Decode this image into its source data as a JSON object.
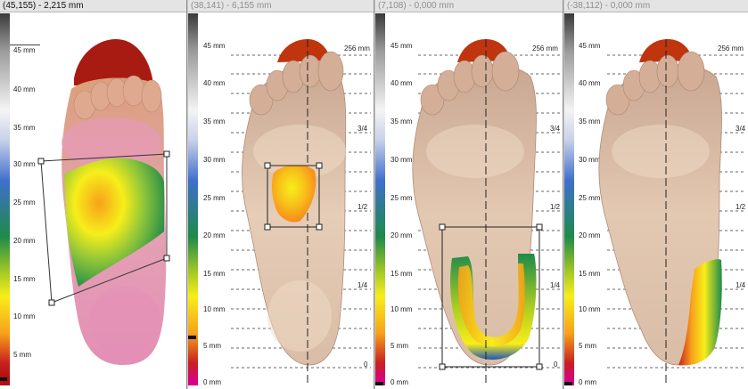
{
  "panels": [
    {
      "title": "(45,155) - 2,215 mm",
      "title_state": "active",
      "scale_labels": [
        "45 mm",
        "40 mm",
        "35 mm",
        "30 mm",
        "25 mm",
        "20 mm",
        "15 mm",
        "10 mm",
        "5 mm"
      ],
      "selection": "quadrilateral",
      "marker_level_mm": 2.2
    },
    {
      "title": "(38,141) - 6,155 mm",
      "title_state": "inactive",
      "scale_labels": [
        "45 mm",
        "40 mm",
        "35 mm",
        "30 mm",
        "25 mm",
        "20 mm",
        "15 mm",
        "10 mm",
        "5 mm",
        "0 mm"
      ],
      "guide_labels": [
        "256 mm",
        "3/4",
        "1/2",
        "1/4",
        "0"
      ],
      "selection": "rectangle",
      "marker_level_mm": 6.2
    },
    {
      "title": "(7,108) - 0,000 mm",
      "title_state": "inactive",
      "scale_labels": [
        "45 mm",
        "40 mm",
        "35 mm",
        "30 mm",
        "25 mm",
        "20 mm",
        "15 mm",
        "10 mm",
        "5 mm",
        "0 mm"
      ],
      "guide_labels": [
        "256 mm",
        "3/4",
        "1/2",
        "1/4",
        "0"
      ],
      "selection": "rectangle",
      "marker_level_mm": 0
    },
    {
      "title": "(-38,112) - 0,000 mm",
      "title_state": "inactive",
      "scale_labels": [
        "45 mm",
        "40 mm",
        "35 mm",
        "30 mm",
        "25 mm",
        "20 mm",
        "15 mm",
        "10 mm",
        "5 mm",
        "0 mm"
      ],
      "guide_labels": [
        "256 mm",
        "3/4",
        "1/2",
        "1/4"
      ],
      "selection": "none",
      "marker_level_mm": 0
    }
  ],
  "colors": {
    "scale_top": "#3a3a3a",
    "scale_grey": "#f2f2f2",
    "scale_blue": "#1f56b5",
    "scale_green": "#1e8a4a",
    "scale_yellow": "#f7ee1a",
    "scale_orange": "#f7a11a",
    "scale_red": "#b01010",
    "scale_bottom": "#d8008a",
    "foot_skin": "#d9b8a2",
    "heel_pink": "#e48fb6"
  }
}
